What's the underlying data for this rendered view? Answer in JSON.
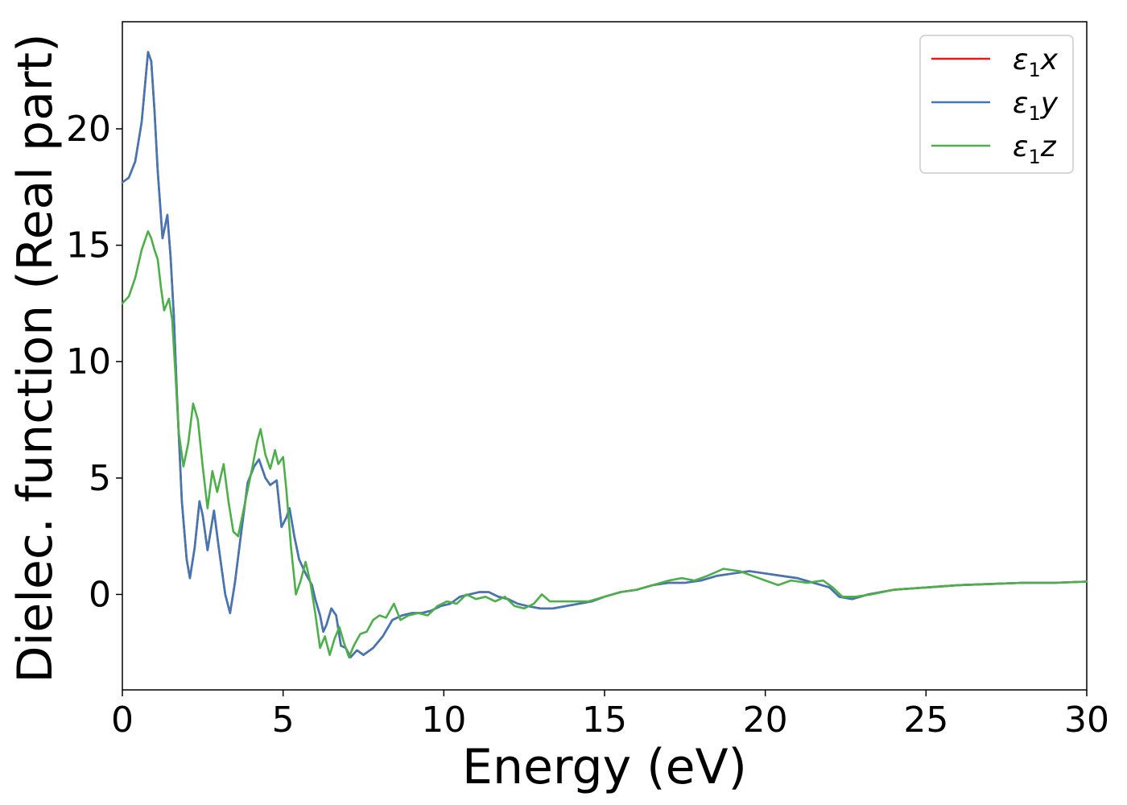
{
  "chart_data": {
    "type": "line",
    "title": "",
    "xlabel": "Energy (eV)",
    "ylabel": "Dielec. function (Real part)",
    "xlim": [
      0,
      30
    ],
    "ylim": [
      -4.1,
      24.6
    ],
    "x_ticks": [
      0,
      5,
      10,
      15,
      20,
      25,
      30
    ],
    "y_ticks": [
      0,
      5,
      10,
      15,
      20
    ],
    "grid": false,
    "legend_position": "top-right",
    "series": [
      {
        "name": "ε₁x",
        "name_parts": {
          "base": "ε",
          "sub": "1",
          "suffix": "x"
        },
        "color": "#e41a1c",
        "points": [
          [
            0,
            17.7
          ],
          [
            0.2,
            17.9
          ],
          [
            0.4,
            18.6
          ],
          [
            0.6,
            20.3
          ],
          [
            0.8,
            23.3
          ],
          [
            0.9,
            22.9
          ],
          [
            1.0,
            20.8
          ],
          [
            1.1,
            18.2
          ],
          [
            1.25,
            15.3
          ],
          [
            1.4,
            16.3
          ],
          [
            1.5,
            14.5
          ],
          [
            1.6,
            12.0
          ],
          [
            1.7,
            8.5
          ],
          [
            1.85,
            4.0
          ],
          [
            2.0,
            1.5
          ],
          [
            2.1,
            0.7
          ],
          [
            2.25,
            2.0
          ],
          [
            2.4,
            4.0
          ],
          [
            2.5,
            3.4
          ],
          [
            2.65,
            1.9
          ],
          [
            2.85,
            3.6
          ],
          [
            3.0,
            2.0
          ],
          [
            3.2,
            0.0
          ],
          [
            3.35,
            -0.8
          ],
          [
            3.5,
            0.5
          ],
          [
            3.7,
            2.7
          ],
          [
            3.9,
            4.8
          ],
          [
            4.1,
            5.5
          ],
          [
            4.25,
            5.8
          ],
          [
            4.45,
            5.0
          ],
          [
            4.6,
            4.7
          ],
          [
            4.8,
            4.9
          ],
          [
            4.95,
            2.9
          ],
          [
            5.1,
            3.3
          ],
          [
            5.2,
            3.7
          ],
          [
            5.35,
            2.5
          ],
          [
            5.5,
            1.5
          ],
          [
            5.7,
            0.9
          ],
          [
            5.9,
            0.4
          ],
          [
            6.0,
            -0.2
          ],
          [
            6.15,
            -0.9
          ],
          [
            6.25,
            -1.6
          ],
          [
            6.35,
            -1.3
          ],
          [
            6.5,
            -0.6
          ],
          [
            6.65,
            -0.9
          ],
          [
            6.8,
            -2.2
          ],
          [
            6.95,
            -2.3
          ],
          [
            7.1,
            -2.7
          ],
          [
            7.3,
            -2.4
          ],
          [
            7.5,
            -2.6
          ],
          [
            7.8,
            -2.3
          ],
          [
            8.1,
            -1.8
          ],
          [
            8.4,
            -1.1
          ],
          [
            8.7,
            -0.9
          ],
          [
            9.0,
            -0.8
          ],
          [
            9.3,
            -0.8
          ],
          [
            9.6,
            -0.7
          ],
          [
            9.9,
            -0.5
          ],
          [
            10.2,
            -0.4
          ],
          [
            10.5,
            -0.1
          ],
          [
            10.8,
            0.0
          ],
          [
            11.1,
            0.1
          ],
          [
            11.4,
            0.1
          ],
          [
            11.7,
            -0.1
          ],
          [
            12.0,
            -0.2
          ],
          [
            12.3,
            -0.4
          ],
          [
            12.6,
            -0.5
          ],
          [
            13.0,
            -0.6
          ],
          [
            13.4,
            -0.6
          ],
          [
            13.8,
            -0.5
          ],
          [
            14.2,
            -0.4
          ],
          [
            14.6,
            -0.3
          ],
          [
            15.0,
            -0.1
          ],
          [
            15.5,
            0.1
          ],
          [
            16.0,
            0.2
          ],
          [
            16.5,
            0.4
          ],
          [
            17.0,
            0.5
          ],
          [
            17.5,
            0.5
          ],
          [
            18.0,
            0.6
          ],
          [
            18.5,
            0.8
          ],
          [
            19.0,
            0.9
          ],
          [
            19.5,
            1.0
          ],
          [
            20.0,
            0.9
          ],
          [
            20.5,
            0.8
          ],
          [
            21.0,
            0.7
          ],
          [
            21.5,
            0.5
          ],
          [
            22.0,
            0.3
          ],
          [
            22.3,
            -0.1
          ],
          [
            22.7,
            -0.2
          ],
          [
            23.2,
            0.0
          ],
          [
            24.0,
            0.2
          ],
          [
            25.0,
            0.3
          ],
          [
            26.0,
            0.4
          ],
          [
            27.0,
            0.45
          ],
          [
            28.0,
            0.5
          ],
          [
            29.0,
            0.5
          ],
          [
            30.0,
            0.55
          ]
        ]
      },
      {
        "name": "ε₁y",
        "name_parts": {
          "base": "ε",
          "sub": "1",
          "suffix": "y"
        },
        "color": "#4177b4",
        "points": [
          [
            0,
            17.7
          ],
          [
            0.2,
            17.9
          ],
          [
            0.4,
            18.6
          ],
          [
            0.6,
            20.3
          ],
          [
            0.8,
            23.3
          ],
          [
            0.9,
            22.9
          ],
          [
            1.0,
            20.8
          ],
          [
            1.1,
            18.2
          ],
          [
            1.25,
            15.3
          ],
          [
            1.4,
            16.3
          ],
          [
            1.5,
            14.5
          ],
          [
            1.6,
            12.0
          ],
          [
            1.7,
            8.5
          ],
          [
            1.85,
            4.0
          ],
          [
            2.0,
            1.5
          ],
          [
            2.1,
            0.7
          ],
          [
            2.25,
            2.0
          ],
          [
            2.4,
            4.0
          ],
          [
            2.5,
            3.4
          ],
          [
            2.65,
            1.9
          ],
          [
            2.85,
            3.6
          ],
          [
            3.0,
            2.0
          ],
          [
            3.2,
            0.0
          ],
          [
            3.35,
            -0.8
          ],
          [
            3.5,
            0.5
          ],
          [
            3.7,
            2.7
          ],
          [
            3.9,
            4.8
          ],
          [
            4.1,
            5.5
          ],
          [
            4.25,
            5.8
          ],
          [
            4.45,
            5.0
          ],
          [
            4.6,
            4.7
          ],
          [
            4.8,
            4.9
          ],
          [
            4.95,
            2.9
          ],
          [
            5.1,
            3.3
          ],
          [
            5.2,
            3.7
          ],
          [
            5.35,
            2.5
          ],
          [
            5.5,
            1.5
          ],
          [
            5.7,
            0.9
          ],
          [
            5.9,
            0.4
          ],
          [
            6.0,
            -0.2
          ],
          [
            6.15,
            -0.9
          ],
          [
            6.25,
            -1.6
          ],
          [
            6.35,
            -1.3
          ],
          [
            6.5,
            -0.6
          ],
          [
            6.65,
            -0.9
          ],
          [
            6.8,
            -2.2
          ],
          [
            6.95,
            -2.3
          ],
          [
            7.1,
            -2.7
          ],
          [
            7.3,
            -2.4
          ],
          [
            7.5,
            -2.6
          ],
          [
            7.8,
            -2.3
          ],
          [
            8.1,
            -1.8
          ],
          [
            8.4,
            -1.1
          ],
          [
            8.7,
            -0.9
          ],
          [
            9.0,
            -0.8
          ],
          [
            9.3,
            -0.8
          ],
          [
            9.6,
            -0.7
          ],
          [
            9.9,
            -0.5
          ],
          [
            10.2,
            -0.4
          ],
          [
            10.5,
            -0.1
          ],
          [
            10.8,
            0.0
          ],
          [
            11.1,
            0.1
          ],
          [
            11.4,
            0.1
          ],
          [
            11.7,
            -0.1
          ],
          [
            12.0,
            -0.2
          ],
          [
            12.3,
            -0.4
          ],
          [
            12.6,
            -0.5
          ],
          [
            13.0,
            -0.6
          ],
          [
            13.4,
            -0.6
          ],
          [
            13.8,
            -0.5
          ],
          [
            14.2,
            -0.4
          ],
          [
            14.6,
            -0.3
          ],
          [
            15.0,
            -0.1
          ],
          [
            15.5,
            0.1
          ],
          [
            16.0,
            0.2
          ],
          [
            16.5,
            0.4
          ],
          [
            17.0,
            0.5
          ],
          [
            17.5,
            0.5
          ],
          [
            18.0,
            0.6
          ],
          [
            18.5,
            0.8
          ],
          [
            19.0,
            0.9
          ],
          [
            19.5,
            1.0
          ],
          [
            20.0,
            0.9
          ],
          [
            20.5,
            0.8
          ],
          [
            21.0,
            0.7
          ],
          [
            21.5,
            0.5
          ],
          [
            22.0,
            0.3
          ],
          [
            22.3,
            -0.1
          ],
          [
            22.7,
            -0.2
          ],
          [
            23.2,
            0.0
          ],
          [
            24.0,
            0.2
          ],
          [
            25.0,
            0.3
          ],
          [
            26.0,
            0.4
          ],
          [
            27.0,
            0.45
          ],
          [
            28.0,
            0.5
          ],
          [
            29.0,
            0.5
          ],
          [
            30.0,
            0.55
          ]
        ]
      },
      {
        "name": "ε₁z",
        "name_parts": {
          "base": "ε",
          "sub": "1",
          "suffix": "z"
        },
        "color": "#4daf4a",
        "points": [
          [
            0,
            12.5
          ],
          [
            0.2,
            12.8
          ],
          [
            0.4,
            13.6
          ],
          [
            0.6,
            14.8
          ],
          [
            0.8,
            15.6
          ],
          [
            0.9,
            15.3
          ],
          [
            1.0,
            14.8
          ],
          [
            1.1,
            14.4
          ],
          [
            1.2,
            13.2
          ],
          [
            1.3,
            12.2
          ],
          [
            1.45,
            12.7
          ],
          [
            1.55,
            11.8
          ],
          [
            1.65,
            9.5
          ],
          [
            1.75,
            7.0
          ],
          [
            1.9,
            5.5
          ],
          [
            2.05,
            6.5
          ],
          [
            2.2,
            8.2
          ],
          [
            2.35,
            7.5
          ],
          [
            2.5,
            5.5
          ],
          [
            2.65,
            3.7
          ],
          [
            2.8,
            5.3
          ],
          [
            2.95,
            4.4
          ],
          [
            3.15,
            5.6
          ],
          [
            3.3,
            4.0
          ],
          [
            3.45,
            2.7
          ],
          [
            3.6,
            2.5
          ],
          [
            3.75,
            3.5
          ],
          [
            3.9,
            4.5
          ],
          [
            4.05,
            5.5
          ],
          [
            4.2,
            6.6
          ],
          [
            4.3,
            7.1
          ],
          [
            4.45,
            6.0
          ],
          [
            4.6,
            5.4
          ],
          [
            4.75,
            6.2
          ],
          [
            4.85,
            5.6
          ],
          [
            5.0,
            5.9
          ],
          [
            5.1,
            4.5
          ],
          [
            5.25,
            2.0
          ],
          [
            5.4,
            0.0
          ],
          [
            5.55,
            0.6
          ],
          [
            5.7,
            1.4
          ],
          [
            5.85,
            0.5
          ],
          [
            6.0,
            -0.8
          ],
          [
            6.15,
            -2.3
          ],
          [
            6.3,
            -1.8
          ],
          [
            6.45,
            -2.6
          ],
          [
            6.6,
            -1.9
          ],
          [
            6.75,
            -1.4
          ],
          [
            6.9,
            -2.1
          ],
          [
            7.05,
            -2.7
          ],
          [
            7.2,
            -2.2
          ],
          [
            7.4,
            -1.7
          ],
          [
            7.6,
            -1.6
          ],
          [
            7.8,
            -1.1
          ],
          [
            8.0,
            -0.9
          ],
          [
            8.2,
            -1.0
          ],
          [
            8.45,
            -0.4
          ],
          [
            8.65,
            -1.1
          ],
          [
            8.9,
            -0.9
          ],
          [
            9.2,
            -0.8
          ],
          [
            9.5,
            -0.9
          ],
          [
            9.8,
            -0.5
          ],
          [
            10.1,
            -0.3
          ],
          [
            10.4,
            -0.4
          ],
          [
            10.7,
            0.0
          ],
          [
            11.0,
            -0.2
          ],
          [
            11.3,
            -0.1
          ],
          [
            11.6,
            -0.3
          ],
          [
            11.9,
            -0.1
          ],
          [
            12.2,
            -0.5
          ],
          [
            12.5,
            -0.6
          ],
          [
            12.8,
            -0.4
          ],
          [
            13.05,
            0.0
          ],
          [
            13.3,
            -0.3
          ],
          [
            13.7,
            -0.3
          ],
          [
            14.1,
            -0.3
          ],
          [
            14.5,
            -0.3
          ],
          [
            15.0,
            -0.1
          ],
          [
            15.5,
            0.1
          ],
          [
            16.0,
            0.2
          ],
          [
            16.5,
            0.4
          ],
          [
            17.0,
            0.6
          ],
          [
            17.4,
            0.7
          ],
          [
            17.8,
            0.6
          ],
          [
            18.2,
            0.8
          ],
          [
            18.7,
            1.1
          ],
          [
            19.2,
            1.0
          ],
          [
            19.6,
            0.8
          ],
          [
            20.0,
            0.6
          ],
          [
            20.4,
            0.4
          ],
          [
            20.8,
            0.6
          ],
          [
            21.3,
            0.5
          ],
          [
            21.8,
            0.6
          ],
          [
            22.1,
            0.3
          ],
          [
            22.4,
            -0.1
          ],
          [
            22.8,
            -0.1
          ],
          [
            23.3,
            0.0
          ],
          [
            24.0,
            0.2
          ],
          [
            25.0,
            0.3
          ],
          [
            26.0,
            0.4
          ],
          [
            27.0,
            0.45
          ],
          [
            28.0,
            0.5
          ],
          [
            29.0,
            0.5
          ],
          [
            30.0,
            0.55
          ]
        ]
      }
    ]
  }
}
